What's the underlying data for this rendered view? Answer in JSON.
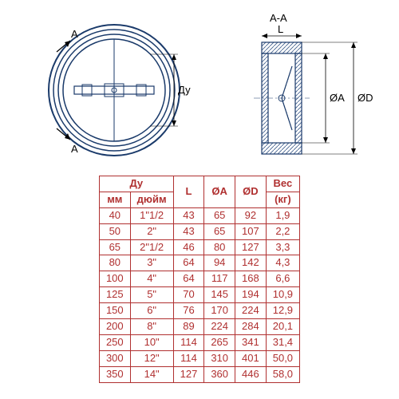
{
  "diagram": {
    "front_view": {
      "label_A_top": "A",
      "label_A_bottom": "A",
      "label_dy": "Ду",
      "stroke_color": "#1a3a6a",
      "stroke_width": 1.5,
      "hinge_color": "#1a3a6a"
    },
    "side_view": {
      "label_section": "A-A",
      "label_L": "L",
      "label_diamA": "ØA",
      "label_diamD": "ØD",
      "stroke_color": "#1a3a6a",
      "hatch_color": "#3a5a8a"
    }
  },
  "table": {
    "border_color": "#b03030",
    "text_color": "#b03030",
    "headers": {
      "dy": "Ду",
      "mm": "мм",
      "inch": "дюйм",
      "L": "L",
      "diamA": "ØA",
      "diamD": "ØD",
      "weight": "Вес",
      "weight_unit": "(кг)"
    },
    "rows": [
      {
        "mm": "40",
        "inch": "1\"1/2",
        "L": "43",
        "A": "65",
        "D": "92",
        "W": "1,9"
      },
      {
        "mm": "50",
        "inch": "2\"",
        "L": "43",
        "A": "65",
        "D": "107",
        "W": "2,2"
      },
      {
        "mm": "65",
        "inch": "2\"1/2",
        "L": "46",
        "A": "80",
        "D": "127",
        "W": "3,3"
      },
      {
        "mm": "80",
        "inch": "3\"",
        "L": "64",
        "A": "94",
        "D": "142",
        "W": "4,3"
      },
      {
        "mm": "100",
        "inch": "4\"",
        "L": "64",
        "A": "117",
        "D": "168",
        "W": "6,6"
      },
      {
        "mm": "125",
        "inch": "5\"",
        "L": "70",
        "A": "145",
        "D": "194",
        "W": "10,9"
      },
      {
        "mm": "150",
        "inch": "6\"",
        "L": "76",
        "A": "170",
        "D": "224",
        "W": "12,9"
      },
      {
        "mm": "200",
        "inch": "8\"",
        "L": "89",
        "A": "224",
        "D": "284",
        "W": "20,1"
      },
      {
        "mm": "250",
        "inch": "10\"",
        "L": "114",
        "A": "265",
        "D": "341",
        "W": "31,4"
      },
      {
        "mm": "300",
        "inch": "12\"",
        "L": "114",
        "A": "310",
        "D": "401",
        "W": "50,0"
      },
      {
        "mm": "350",
        "inch": "14\"",
        "L": "127",
        "A": "360",
        "D": "446",
        "W": "58,0"
      }
    ]
  }
}
